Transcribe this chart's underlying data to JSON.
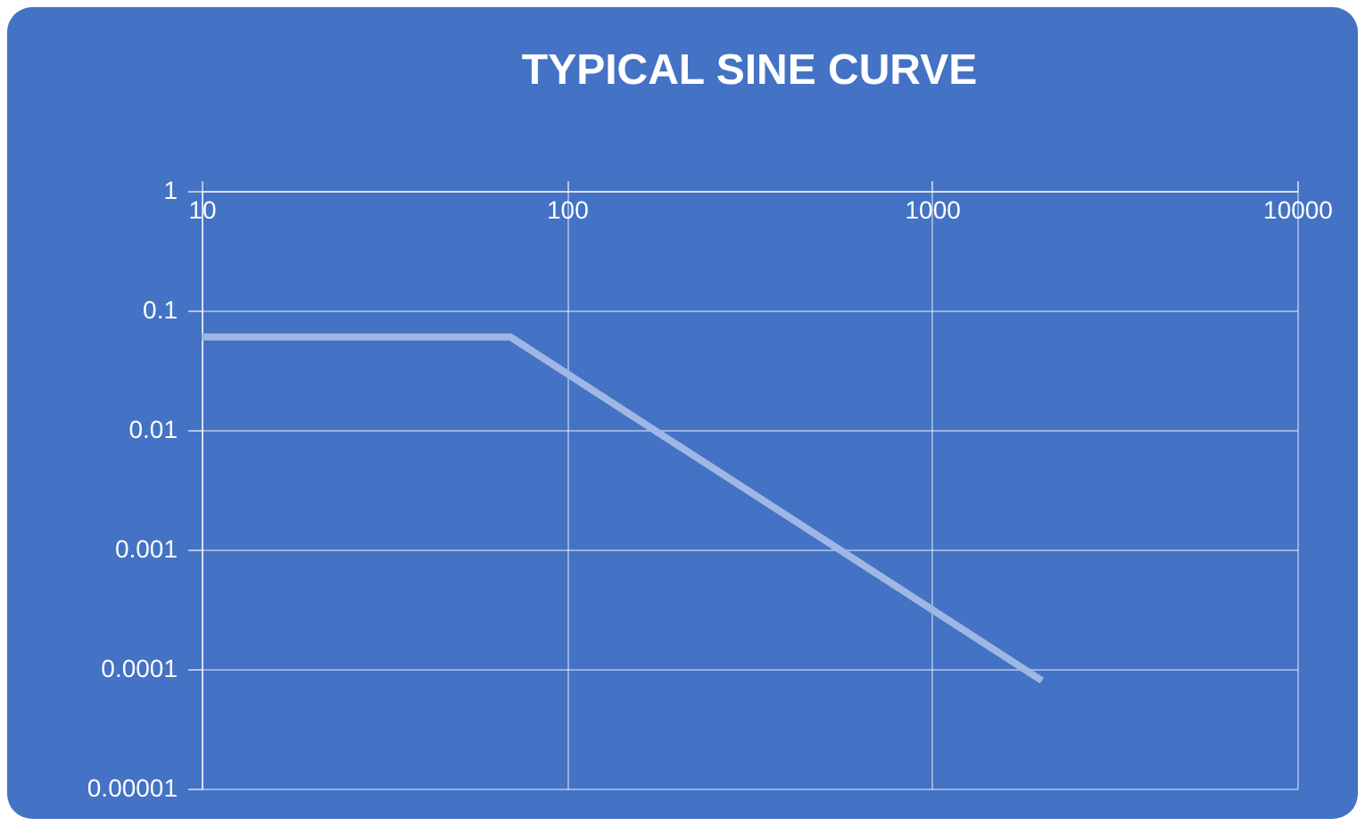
{
  "chart_data": {
    "type": "line",
    "title": "TYPICAL SINE CURVE",
    "x": [
      10,
      70,
      2000
    ],
    "series": [
      {
        "color": "#9fb7e4",
        "values": [
          0.06,
          0.06,
          8e-05
        ]
      }
    ],
    "xlim": [
      10,
      10000
    ],
    "xticks": [
      10,
      100,
      1000,
      10000
    ],
    "ylim": [
      1e-05,
      1
    ],
    "yticks": [
      {
        "value": 1e-05,
        "label": "0.00001"
      },
      0.0001,
      0.001,
      0.01,
      0.1,
      1
    ],
    "log": "xy",
    "grid": true,
    "legend": false
  }
}
